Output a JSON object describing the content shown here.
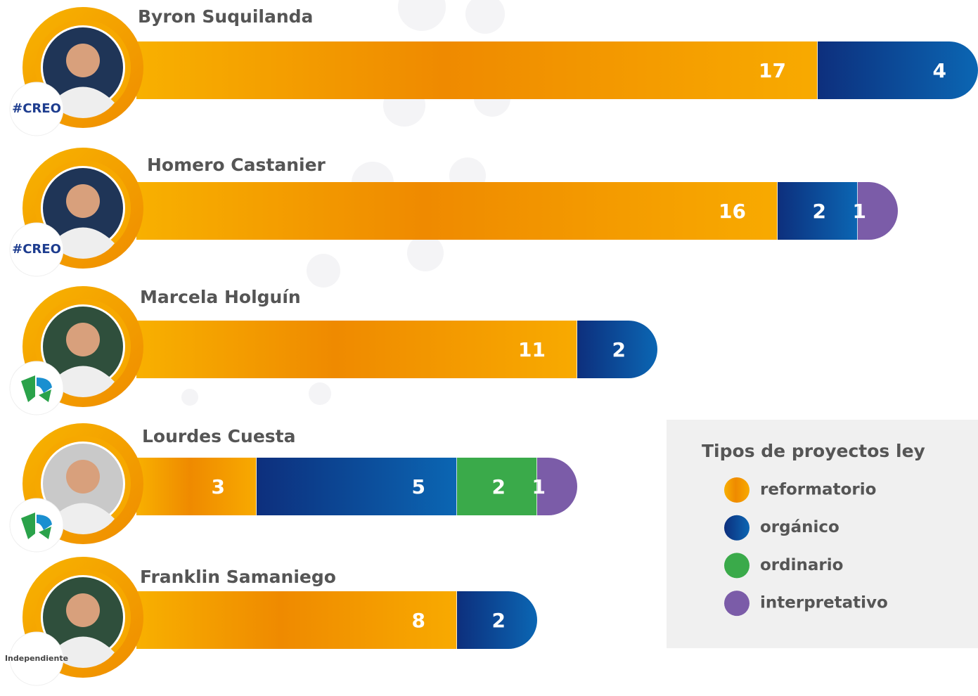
{
  "chart_data": {
    "type": "stacked-bar",
    "categories": [
      "Byron Suquilanda",
      "Homero Castanier",
      "Marcela Holguín",
      "Lourdes Cuesta",
      "Franklin Samaniego"
    ],
    "parties": [
      "#CREO",
      "#CREO",
      null,
      null,
      "Independiente"
    ],
    "series": [
      {
        "name": "reformatorio",
        "color": "#f39200",
        "values": [
          17,
          16,
          11,
          3,
          8
        ]
      },
      {
        "name": "orgánico",
        "color": "#0b4f9e",
        "values": [
          4,
          2,
          2,
          5,
          2
        ]
      },
      {
        "name": "ordinario",
        "color": "#3aaa4a",
        "values": [
          null,
          null,
          null,
          2,
          null
        ]
      },
      {
        "name": "interpretativo",
        "color": "#7b5ca8",
        "values": [
          null,
          1,
          null,
          1,
          null
        ]
      }
    ],
    "xlim": [
      0,
      21
    ],
    "legend_title": "Tipos de proyectos ley",
    "legend_position": "lower-right"
  }
}
